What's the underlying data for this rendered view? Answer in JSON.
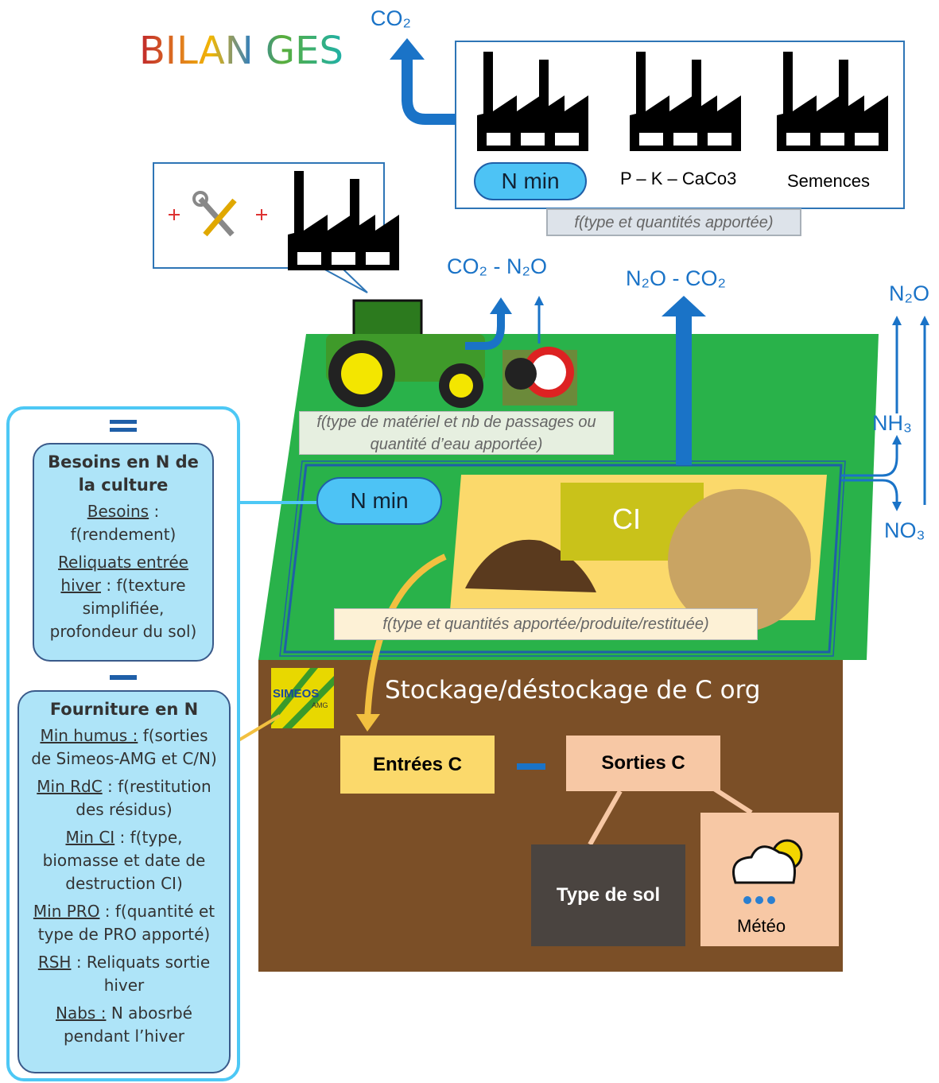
{
  "header": {
    "title": "BILAN GES"
  },
  "top": {
    "emission": "CO₂",
    "sources": [
      "N min",
      "P – K – CaCo3",
      "Semences"
    ],
    "note": "f(type et quantités apportée)"
  },
  "field": {
    "emission_machinery": "CO₂ - N₂O",
    "emission_soil": "N₂O - CO₂",
    "emission_right": "N₂O",
    "nh3": "NH₃",
    "no3": "NO₃",
    "machinery_note": "f(type de matériel et nb de passages ou quantité d’eau apportée)",
    "nmin": "N min",
    "ci": "CI",
    "inputs_note": "f(type et quantités apportée/produite/restituée)"
  },
  "soil": {
    "title": "Stockage/déstockage de C org",
    "logo": "SIMEOS",
    "logo_sub": "AMG",
    "inputs": "Entrées C",
    "outputs": "Sorties C",
    "soil_type": "Type de sol",
    "weather": "Météo"
  },
  "panel": {
    "needs": {
      "title": "Besoins en N de la culture",
      "items": [
        {
          "term": "Besoins",
          "desc": ": f(rendement)"
        },
        {
          "term": "Reliquats entrée hiver",
          "desc": ": f(texture simplifiée, profondeur du sol)"
        }
      ]
    },
    "supply": {
      "title": "Fourniture en N",
      "items": [
        {
          "term": "Min humus :",
          "desc": "f(sorties de Simeos-AMG et C/N)"
        },
        {
          "term": "Min RdC",
          "desc": ": f(restitution des résidus)"
        },
        {
          "term": "Min CI",
          "desc": ": f(type, biomasse et date de destruction CI)"
        },
        {
          "term": "Min PRO",
          "desc": ": f(quantité et type de PRO apporté)"
        },
        {
          "term": "RSH",
          "desc": ": Reliquats sortie hiver"
        },
        {
          "term": "Nabs :",
          "desc": "N abosrbé pendant l’hiver"
        }
      ]
    }
  }
}
